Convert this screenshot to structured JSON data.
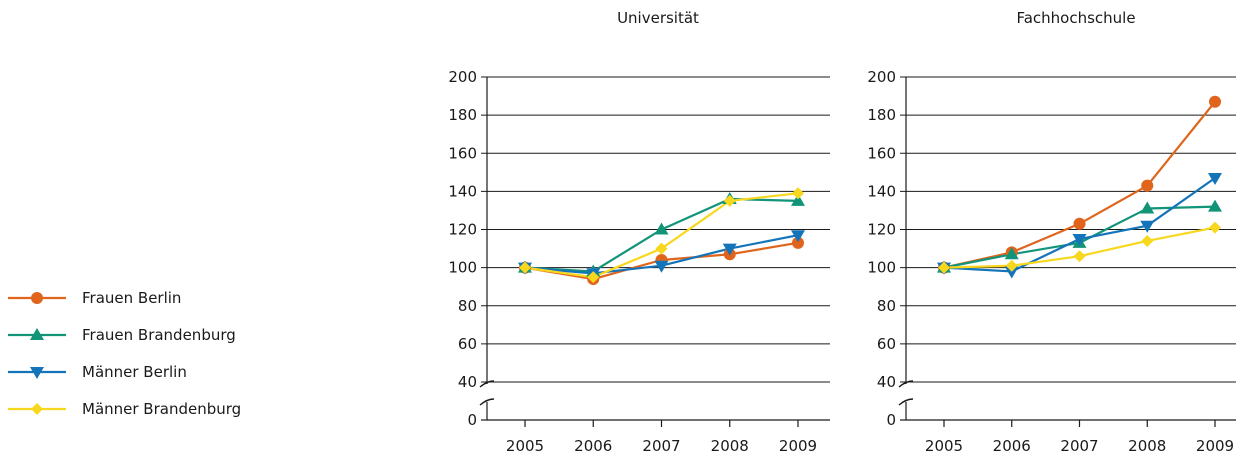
{
  "chart_data": [
    {
      "type": "line",
      "title": "Universität",
      "x": [
        "2005",
        "2006",
        "2007",
        "2008",
        "2009"
      ],
      "yticks": [
        0,
        40,
        60,
        80,
        100,
        120,
        140,
        160,
        180,
        200
      ],
      "ylim": [
        40,
        200
      ],
      "axis_break": true,
      "grid": true,
      "series": [
        {
          "name": "Frauen Berlin",
          "color": "#e0641c",
          "marker": "circle",
          "values": [
            100,
            94,
            104,
            107,
            113
          ]
        },
        {
          "name": "Frauen Brandenburg",
          "color": "#129478",
          "marker": "triangle-up",
          "values": [
            100,
            98,
            120,
            136,
            135
          ]
        },
        {
          "name": "Männer Berlin",
          "color": "#1474b9",
          "marker": "triangle-down",
          "values": [
            100,
            97,
            101,
            110,
            117
          ]
        },
        {
          "name": "Männer Brandenburg",
          "color": "#f7d81e",
          "marker": "diamond",
          "values": [
            100,
            95,
            110,
            135,
            139
          ]
        }
      ]
    },
    {
      "type": "line",
      "title": "Fachhochschule",
      "x": [
        "2005",
        "2006",
        "2007",
        "2008",
        "2009"
      ],
      "yticks": [
        0,
        40,
        60,
        80,
        100,
        120,
        140,
        160,
        180,
        200
      ],
      "ylim": [
        40,
        200
      ],
      "axis_break": true,
      "grid": true,
      "series": [
        {
          "name": "Frauen Berlin",
          "color": "#e0641c",
          "marker": "circle",
          "values": [
            100,
            108,
            123,
            143,
            187
          ]
        },
        {
          "name": "Frauen Brandenburg",
          "color": "#129478",
          "marker": "triangle-up",
          "values": [
            100,
            107,
            113,
            131,
            132
          ]
        },
        {
          "name": "Männer Berlin",
          "color": "#1474b9",
          "marker": "triangle-down",
          "values": [
            100,
            98,
            115,
            122,
            147
          ]
        },
        {
          "name": "Männer Brandenburg",
          "color": "#f7d81e",
          "marker": "diamond",
          "values": [
            100,
            101,
            106,
            114,
            121
          ]
        }
      ]
    }
  ],
  "legend": {
    "placement": "left",
    "items": [
      {
        "label": "Frauen Berlin",
        "color": "#e0641c",
        "marker": "circle"
      },
      {
        "label": "Frauen Brandenburg",
        "color": "#129478",
        "marker": "triangle-up"
      },
      {
        "label": "Männer Berlin",
        "color": "#1474b9",
        "marker": "triangle-down"
      },
      {
        "label": "Männer Brandenburg",
        "color": "#f7d81e",
        "marker": "diamond"
      }
    ]
  }
}
